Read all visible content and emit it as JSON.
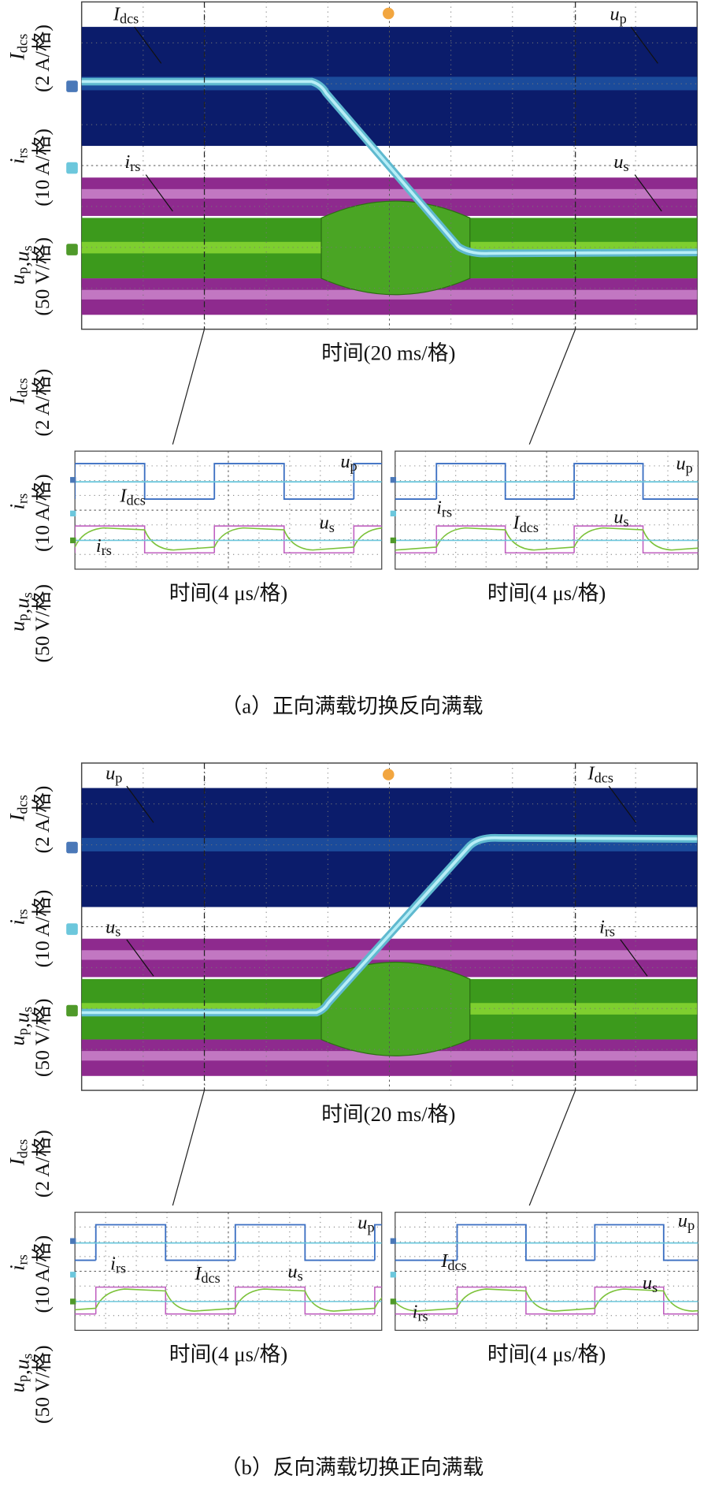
{
  "figures": [
    {
      "main": {
        "y_labels": [
          {
            "sym": [
              [
                "I",
                "dcs"
              ]
            ],
            "unit": "(2 A/格)"
          },
          {
            "sym": [
              [
                "i",
                "rs"
              ]
            ],
            "unit": "(10 A/格)"
          },
          {
            "sym": [
              [
                "u",
                "p"
              ],
              [
                ",u",
                "s"
              ]
            ],
            "unit": "(50 V/格)"
          }
        ],
        "x_label": "时间(20 ms/格)",
        "trace_labels": [
          [
            [
              "I",
              "dcs"
            ]
          ],
          [
            [
              "u",
              "p"
            ]
          ],
          [
            [
              "i",
              "rs"
            ]
          ],
          [
            [
              "u",
              "s"
            ]
          ]
        ]
      },
      "zoom_y_labels": [
        {
          "sym": [
            [
              "I",
              "dcs"
            ]
          ],
          "unit": "(2 A/格)"
        },
        {
          "sym": [
            [
              "i",
              "rs"
            ]
          ],
          "unit": "(10 A/格)"
        },
        {
          "sym": [
            [
              "u",
              "p"
            ],
            [
              ",u",
              "s"
            ]
          ],
          "unit": "(50 V/格)"
        }
      ],
      "zooms": [
        {
          "x_label": "时间(4 μs/格)",
          "trace_labels": [
            [
              [
                "u",
                "p"
              ]
            ],
            [
              [
                "I",
                "dcs"
              ]
            ],
            [
              [
                "u",
                "s"
              ]
            ],
            [
              [
                "i",
                "rs"
              ]
            ]
          ]
        },
        {
          "x_label": "时间(4 μs/格)",
          "trace_labels": [
            [
              [
                "u",
                "p"
              ]
            ],
            [
              [
                "i",
                "rs"
              ]
            ],
            [
              [
                "I",
                "dcs"
              ]
            ],
            [
              [
                "u",
                "s"
              ]
            ]
          ]
        }
      ],
      "caption": "（a）正向满载切换反向满载"
    },
    {
      "main": {
        "y_labels": [
          {
            "sym": [
              [
                "I",
                "dcs"
              ]
            ],
            "unit": "(2 A/格)"
          },
          {
            "sym": [
              [
                "i",
                "rs"
              ]
            ],
            "unit": "(10 A/格)"
          },
          {
            "sym": [
              [
                "u",
                "p"
              ],
              [
                ",u",
                "s"
              ]
            ],
            "unit": "(50 V/格)"
          }
        ],
        "x_label": "时间(20 ms/格)",
        "trace_labels": [
          [
            [
              "u",
              "p"
            ]
          ],
          [
            [
              "I",
              "dcs"
            ]
          ],
          [
            [
              "u",
              "s"
            ]
          ],
          [
            [
              "i",
              "rs"
            ]
          ]
        ]
      },
      "zoom_y_labels": [
        {
          "sym": [
            [
              "I",
              "dcs"
            ]
          ],
          "unit": "(2 A/格)"
        },
        {
          "sym": [
            [
              "i",
              "rs"
            ]
          ],
          "unit": "(10 A/格)"
        },
        {
          "sym": [
            [
              "u",
              "p"
            ],
            [
              ",u",
              "s"
            ]
          ],
          "unit": "(50 V/格)"
        }
      ],
      "zooms": [
        {
          "x_label": "时间(4 μs/格)",
          "trace_labels": [
            [
              [
                "u",
                "p"
              ]
            ],
            [
              [
                "i",
                "rs"
              ]
            ],
            [
              [
                "I",
                "dcs"
              ]
            ],
            [
              [
                "u",
                "s"
              ]
            ]
          ]
        },
        {
          "x_label": "时间(4 μs/格)",
          "trace_labels": [
            [
              [
                "u",
                "p"
              ]
            ],
            [
              [
                "I",
                "dcs"
              ]
            ],
            [
              [
                "u",
                "s"
              ]
            ],
            [
              [
                "i",
                "rs"
              ]
            ]
          ]
        }
      ],
      "caption": "（b）反向满载切换正向满载"
    }
  ]
}
